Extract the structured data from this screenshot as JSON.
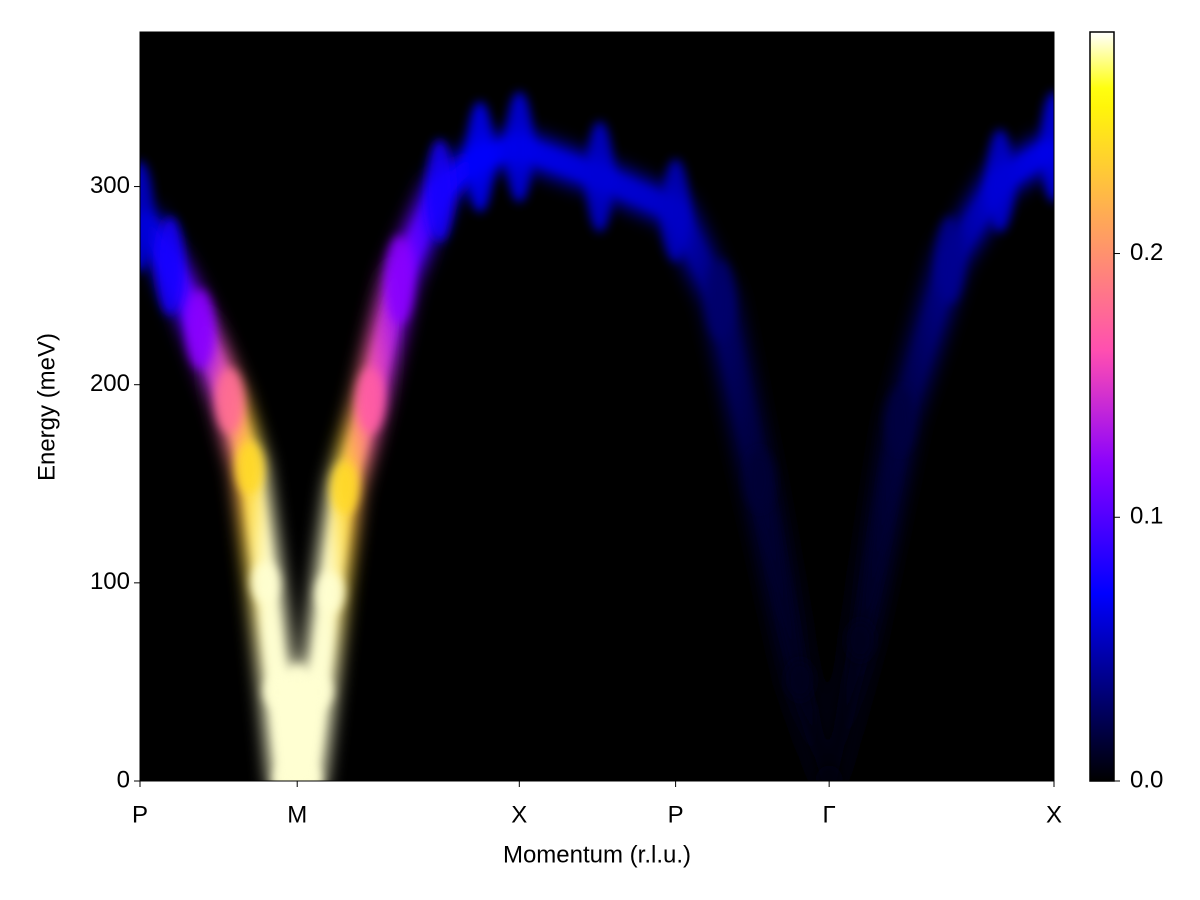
{
  "chart_data": {
    "type": "heatmap",
    "xlabel": "Momentum (r.l.u.)",
    "ylabel": "Energy (meV)",
    "background": "#000000",
    "xlim": [
      0,
      1
    ],
    "xticks": [
      {
        "value": 0,
        "label": "P"
      },
      {
        "value": 0.172,
        "label": "M"
      },
      {
        "value": 0.415,
        "label": "X"
      },
      {
        "value": 0.586,
        "label": "P"
      },
      {
        "value": 0.754,
        "label": "Γ"
      },
      {
        "value": 1,
        "label": "X"
      }
    ],
    "ylim": [
      0,
      378
    ],
    "yticks": [
      0,
      100,
      200,
      300
    ],
    "x": [
      0,
      0.033,
      0.066,
      0.098,
      0.12,
      0.137,
      0.151,
      0.161,
      0.172,
      0.183,
      0.195,
      0.208,
      0.224,
      0.252,
      0.284,
      0.328,
      0.372,
      0.415,
      0.503,
      0.586,
      0.635,
      0.678,
      0.722,
      0.754,
      0.788,
      0.832,
      0.886,
      0.941,
      1
    ],
    "energy": [
      285,
      260,
      228,
      192,
      158,
      100,
      45,
      0,
      50,
      0,
      45,
      95,
      148,
      192,
      253,
      298,
      315,
      320,
      305,
      288,
      243,
      152,
      51,
      0,
      71,
      182,
      263,
      303,
      320
    ],
    "intensity": [
      0.06,
      0.08,
      0.12,
      0.18,
      0.24,
      0.28,
      0.28,
      0.28,
      0.28,
      0.28,
      0.28,
      0.28,
      0.24,
      0.17,
      0.12,
      0.08,
      0.07,
      0.065,
      0.06,
      0.055,
      0.03,
      0.015,
      0.008,
      0.002,
      0.008,
      0.018,
      0.04,
      0.06,
      0.065
    ],
    "width": [
      28,
      25,
      20,
      16,
      13,
      10,
      8,
      8,
      8,
      8,
      8,
      10,
      13,
      16,
      22,
      26,
      28,
      28,
      28,
      26,
      20,
      15,
      10,
      8,
      10,
      16,
      22,
      26,
      28
    ],
    "colorbar": {
      "colormap": "gnuplot2",
      "lim": [
        0,
        0.284
      ],
      "ticks": [
        {
          "value": 0,
          "label": "0.0"
        },
        0.1,
        0.2
      ]
    }
  }
}
